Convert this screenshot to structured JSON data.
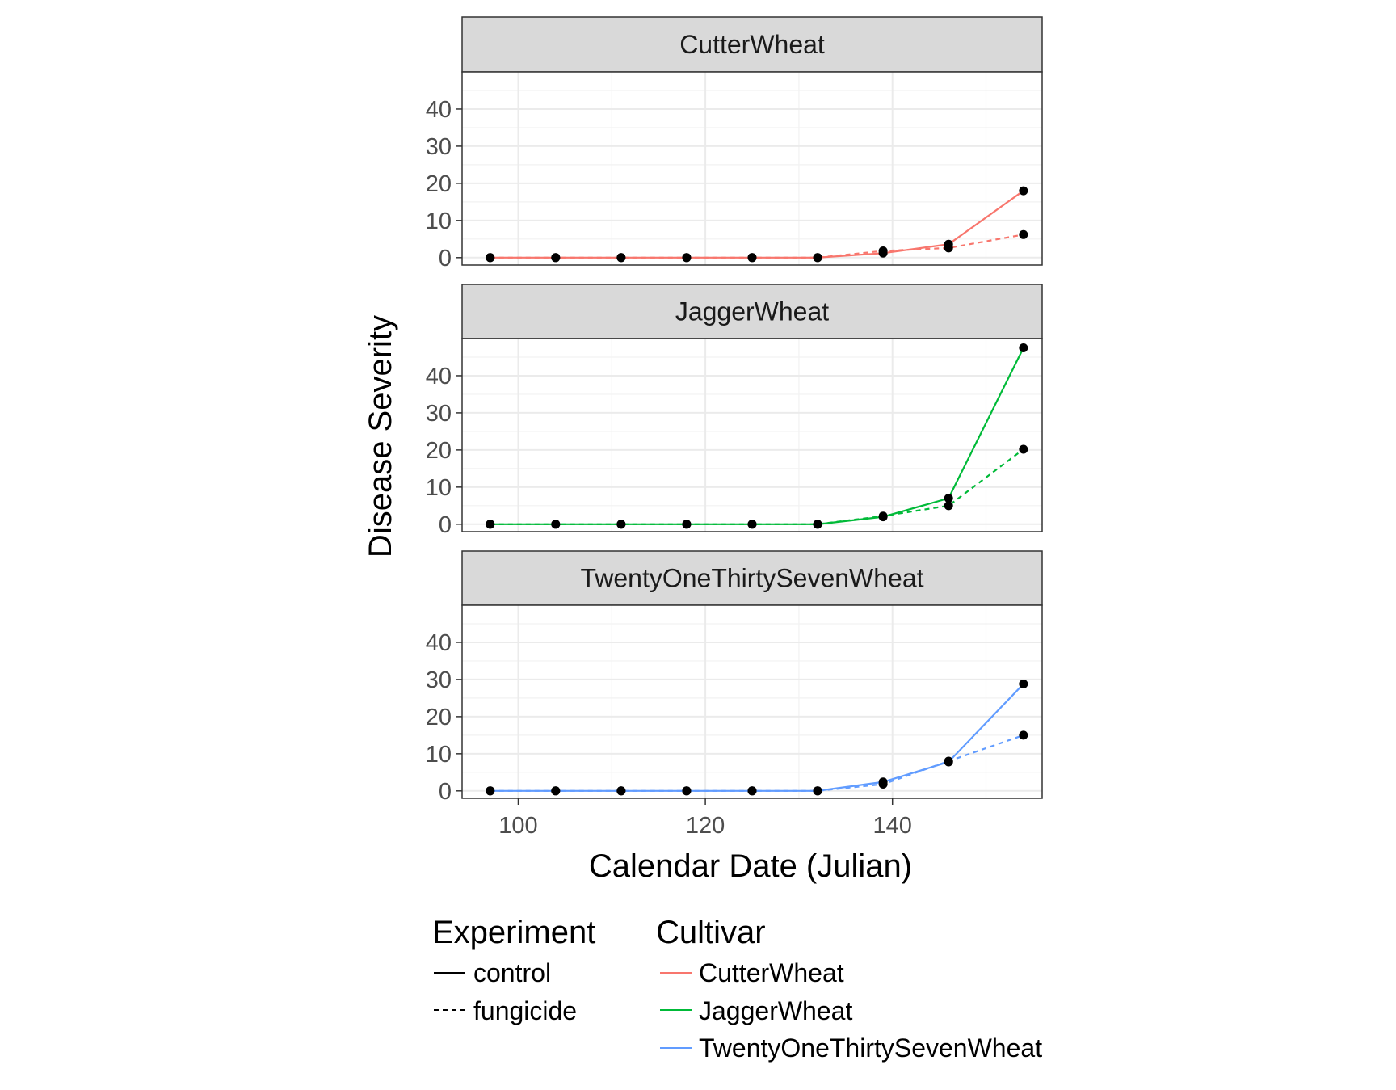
{
  "chart_data": {
    "type": "line",
    "xlabel": "Calendar Date (Julian)",
    "ylabel": "Disease Severity",
    "xlim": [
      94,
      156
    ],
    "ylim": [
      -2,
      50
    ],
    "x_ticks": [
      100,
      120,
      140
    ],
    "y_ticks": [
      0,
      10,
      20,
      30,
      40
    ],
    "grid": true,
    "legend_position": "bottom",
    "x": [
      97,
      104,
      111,
      118,
      125,
      132,
      139,
      146,
      154
    ],
    "facets": [
      {
        "name": "CutterWheat",
        "color": "#F8766D",
        "series": [
          {
            "name": "control",
            "values": [
              0,
              0,
              0,
              0,
              0,
              0,
              1.2,
              3.6,
              18
            ]
          },
          {
            "name": "fungicide",
            "values": [
              0,
              0,
              0,
              0,
              0,
              0,
              1.8,
              2.6,
              6.2
            ]
          }
        ]
      },
      {
        "name": "JaggerWheat",
        "color": "#00BA38",
        "series": [
          {
            "name": "control",
            "values": [
              0,
              0,
              0,
              0,
              0,
              0,
              2,
              7,
              47.5
            ]
          },
          {
            "name": "fungicide",
            "values": [
              0,
              0,
              0,
              0,
              0,
              0,
              2.2,
              5,
              20.2
            ]
          }
        ]
      },
      {
        "name": "TwentyOneThirtySevenWheat",
        "color": "#619CFF",
        "series": [
          {
            "name": "control",
            "values": [
              0,
              0,
              0,
              0,
              0,
              0,
              2.4,
              7.8,
              28.8
            ]
          },
          {
            "name": "fungicide",
            "values": [
              0,
              0,
              0,
              0,
              0,
              0,
              1.8,
              8,
              15
            ]
          }
        ]
      }
    ],
    "legend": {
      "experiment": {
        "title": "Experiment",
        "items": [
          {
            "label": "control",
            "linetype": "solid"
          },
          {
            "label": "fungicide",
            "linetype": "dashed"
          }
        ]
      },
      "cultivar": {
        "title": "Cultivar",
        "items": [
          {
            "label": "CutterWheat",
            "color": "#F8766D"
          },
          {
            "label": "JaggerWheat",
            "color": "#00BA38"
          },
          {
            "label": "TwentyOneThirtySevenWheat",
            "color": "#619CFF"
          }
        ]
      }
    }
  }
}
